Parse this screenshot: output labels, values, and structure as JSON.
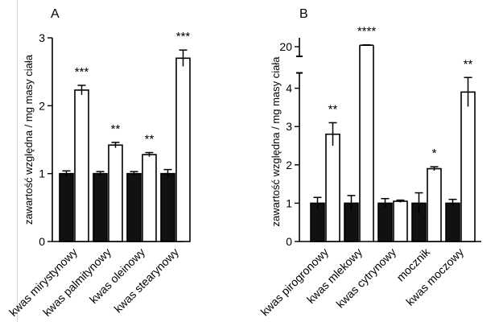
{
  "colors": {
    "control": "#111111",
    "treated": "#ffffff",
    "stroke": "#000000"
  },
  "chart_data": [
    {
      "panel_label": "A",
      "type": "bar",
      "ylabel": "zawartość względna / mg masy ciała",
      "ylim": [
        0,
        3
      ],
      "yticks": [
        0,
        1,
        2,
        3
      ],
      "categories": [
        "kwas mirystynowy",
        "kwas palmitynowy",
        "kwas oleinowy",
        "kwas stearynowy"
      ],
      "series": [
        {
          "values": [
            1.0,
            1.0,
            1.0,
            1.0
          ],
          "errors": [
            0.04,
            0.03,
            0.03,
            0.06
          ]
        },
        {
          "values": [
            2.23,
            1.42,
            1.28,
            2.7
          ],
          "errors": [
            0.07,
            0.04,
            0.03,
            0.12
          ]
        }
      ],
      "significance": [
        "***",
        "**",
        "**",
        "***"
      ],
      "grid": false
    },
    {
      "panel_label": "B",
      "type": "bar",
      "ylabel": "zawartość względna / mg masy ciała",
      "ylim": [
        0,
        20
      ],
      "axis_break": [
        4.4,
        17.8
      ],
      "yticks": [
        0,
        1,
        2,
        3,
        4,
        20
      ],
      "categories": [
        "kwas pirogronowy",
        "kwas mlekowy",
        "kwas cytrynowy",
        "mocznik",
        "kwas moczowy"
      ],
      "series": [
        {
          "values": [
            1.0,
            1.0,
            1.0,
            1.0,
            1.0
          ],
          "errors": [
            0.15,
            0.2,
            0.12,
            0.27,
            0.1
          ]
        },
        {
          "values": [
            2.8,
            20.3,
            1.05,
            1.9,
            3.9
          ],
          "errors": [
            0.3,
            0.08,
            0.03,
            0.05,
            0.38
          ]
        }
      ],
      "significance": [
        "**",
        "****",
        "",
        "*",
        "**"
      ],
      "grid": false
    }
  ]
}
